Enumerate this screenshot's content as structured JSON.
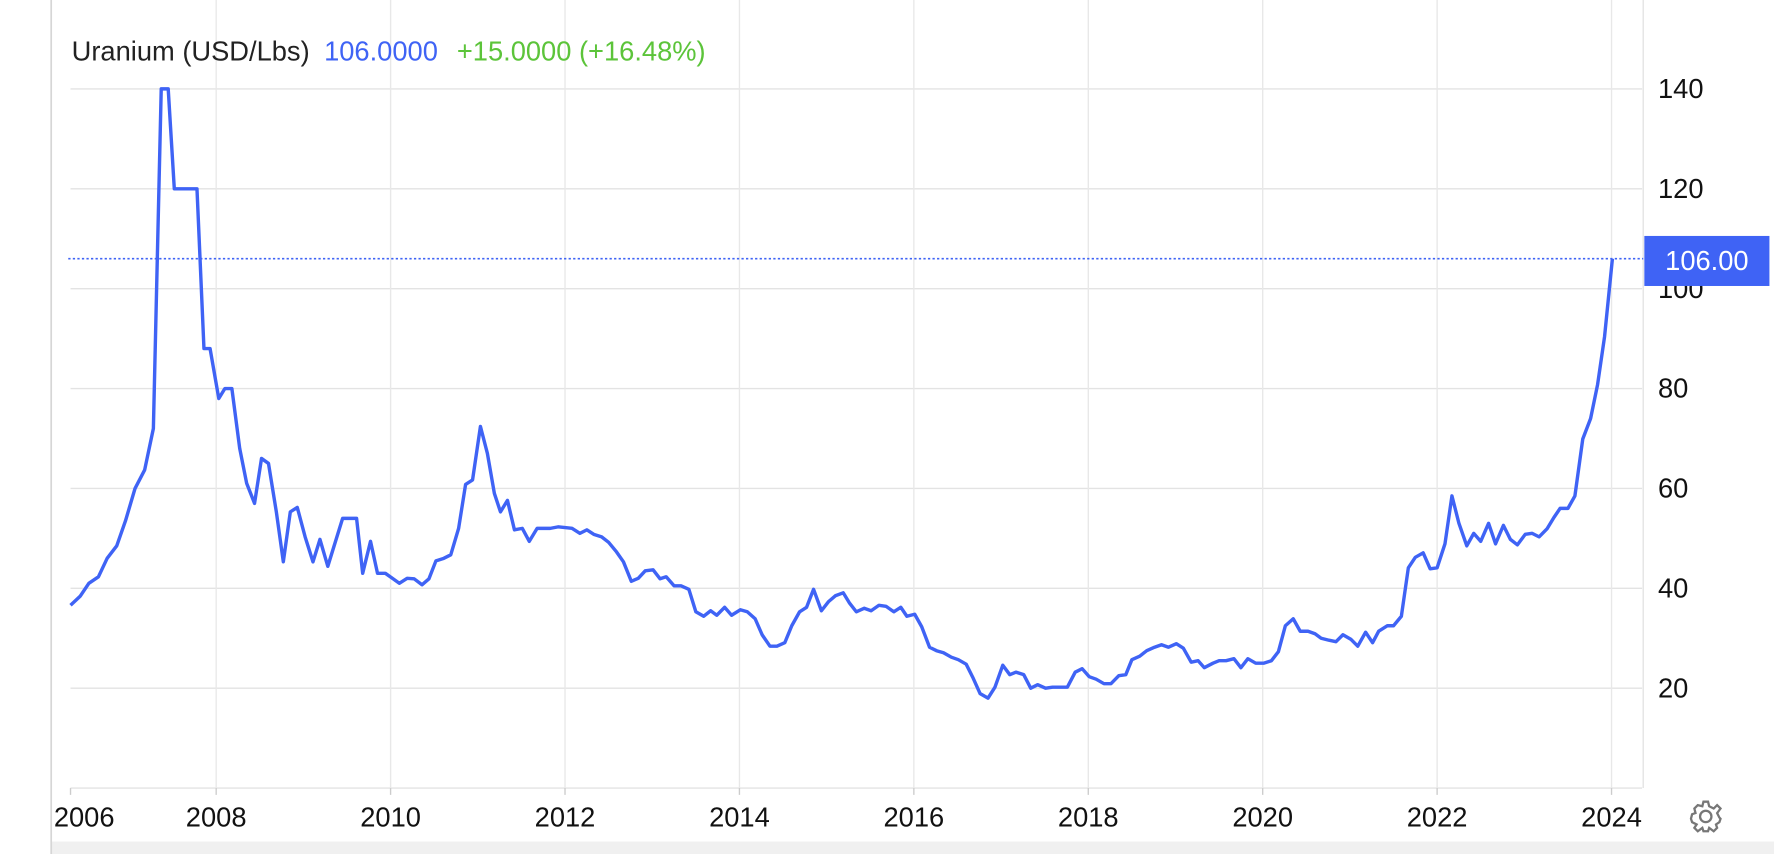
{
  "chart_data": {
    "type": "line",
    "title": "Uranium (USD/Lbs)",
    "price_label": "106.0000",
    "change_label": "+15.0000 (+16.48%)",
    "last_value": {
      "value": 106,
      "label": "106.00"
    },
    "x": [
      2006.33,
      2006.44,
      2006.54,
      2006.65,
      2006.75,
      2006.86,
      2006.96,
      2007.07,
      2007.18,
      2007.28,
      2007.37,
      2007.45,
      2007.52,
      2007.78,
      2007.86,
      2007.93,
      2008.03,
      2008.1,
      2008.18,
      2008.27,
      2008.35,
      2008.44,
      2008.52,
      2008.6,
      2008.69,
      2008.77,
      2008.85,
      2008.93,
      2009.02,
      2009.11,
      2009.19,
      2009.28,
      2009.45,
      2009.61,
      2009.68,
      2009.77,
      2009.85,
      2009.94,
      2010.02,
      2010.1,
      2010.19,
      2010.27,
      2010.36,
      2010.44,
      2010.52,
      2010.61,
      2010.69,
      2010.78,
      2010.86,
      2010.94,
      2011.03,
      2011.11,
      2011.19,
      2011.26,
      2011.34,
      2011.42,
      2011.51,
      2011.59,
      2011.68,
      2011.75,
      2011.83,
      2011.92,
      2012.08,
      2012.17,
      2012.25,
      2012.33,
      2012.42,
      2012.5,
      2012.59,
      2012.67,
      2012.76,
      2012.84,
      2012.92,
      2013.01,
      2013.09,
      2013.16,
      2013.25,
      2013.33,
      2013.42,
      2013.5,
      2013.59,
      2013.67,
      2013.74,
      2013.83,
      2013.91,
      2014.01,
      2014.09,
      2014.18,
      2014.26,
      2014.35,
      2014.43,
      2014.52,
      2014.6,
      2014.69,
      2014.77,
      2014.85,
      2014.94,
      2015.02,
      2015.1,
      2015.19,
      2015.26,
      2015.34,
      2015.43,
      2015.51,
      2015.6,
      2015.68,
      2015.77,
      2015.85,
      2015.92,
      2016.01,
      2016.09,
      2016.18,
      2016.26,
      2016.34,
      2016.43,
      2016.51,
      2016.6,
      2016.68,
      2016.76,
      2016.85,
      2016.93,
      2017.02,
      2017.1,
      2017.17,
      2017.26,
      2017.34,
      2017.42,
      2017.51,
      2017.59,
      2017.68,
      2017.76,
      2017.85,
      2017.93,
      2018.01,
      2018.09,
      2018.18,
      2018.26,
      2018.35,
      2018.43,
      2018.5,
      2018.59,
      2018.67,
      2018.76,
      2018.84,
      2018.92,
      2019.01,
      2019.09,
      2019.18,
      2019.26,
      2019.33,
      2019.43,
      2019.5,
      2019.58,
      2019.67,
      2019.75,
      2019.83,
      2019.92,
      2020.01,
      2020.1,
      2020.18,
      2020.26,
      2020.35,
      2020.43,
      2020.52,
      2020.6,
      2020.67,
      2020.76,
      2020.84,
      2020.92,
      2021.01,
      2021.09,
      2021.18,
      2021.26,
      2021.33,
      2021.43,
      2021.5,
      2021.59,
      2021.67,
      2021.75,
      2021.84,
      2021.92,
      2022.0,
      2022.09,
      2022.17,
      2022.25,
      2022.34,
      2022.42,
      2022.5,
      2022.59,
      2022.67,
      2022.76,
      2022.84,
      2022.92,
      2023.01,
      2023.09,
      2023.17,
      2023.26,
      2023.34,
      2023.41,
      2023.5,
      2023.58,
      2023.67,
      2023.76,
      2023.84,
      2023.92,
      2024.01
    ],
    "series": [
      {
        "name": "Uranium (USD/Lbs)",
        "color": "#3f63f5",
        "values": [
          36.6,
          38.4,
          41,
          42.3,
          46,
          48.5,
          53.5,
          60,
          63.7,
          72,
          140,
          140,
          120,
          120,
          88,
          88,
          78,
          80,
          80,
          68,
          61,
          57,
          66,
          65,
          55.3,
          45.3,
          55.3,
          56.2,
          50.3,
          45.3,
          49.8,
          44.4,
          54,
          54,
          43,
          49.4,
          43,
          43,
          42,
          41,
          42,
          41.9,
          40.7,
          41.9,
          45.5,
          46,
          46.7,
          52,
          60.8,
          61.7,
          72.4,
          67,
          59,
          55.3,
          57.6,
          51.7,
          52,
          49.4,
          52,
          52,
          52,
          52.3,
          52,
          51,
          51.7,
          50.8,
          50.3,
          49.2,
          47.3,
          45.3,
          41.4,
          42,
          43.5,
          43.7,
          41.9,
          42.3,
          40.5,
          40.5,
          39.8,
          35.3,
          34.4,
          35.5,
          34.6,
          36.2,
          34.6,
          35.7,
          35.3,
          33.9,
          30.7,
          28.4,
          28.4,
          29.1,
          32.5,
          35.3,
          36.2,
          39.8,
          35.5,
          37.3,
          38.5,
          39.1,
          37.1,
          35.3,
          36,
          35.5,
          36.6,
          36.4,
          35.3,
          36.2,
          34.4,
          34.8,
          32.3,
          28.2,
          27.5,
          27.1,
          26.2,
          25.7,
          24.8,
          22,
          18.9,
          18,
          20.2,
          24.6,
          22.7,
          23.2,
          22.7,
          20,
          20.7,
          20,
          20.2,
          20.2,
          20.2,
          23.2,
          23.9,
          22.3,
          21.8,
          20.9,
          20.9,
          22.5,
          22.7,
          25.7,
          26.4,
          27.5,
          28.2,
          28.7,
          28.2,
          28.9,
          28,
          25.2,
          25.5,
          24.1,
          25,
          25.5,
          25.5,
          25.9,
          24.1,
          25.9,
          25,
          25,
          25.5,
          27.3,
          32.5,
          33.9,
          31.4,
          31.4,
          30.9,
          30,
          29.6,
          29.3,
          30.7,
          29.8,
          28.4,
          31.2,
          29.1,
          31.4,
          32.5,
          32.5,
          34.4,
          44.1,
          46.2,
          47.1,
          43.9,
          44.1,
          48.9,
          58.5,
          53,
          48.5,
          51,
          49.4,
          53,
          48.9,
          52.6,
          49.8,
          48.7,
          50.8,
          51,
          50.3,
          51.9,
          54.2,
          56,
          56,
          58.5,
          69.9,
          74,
          80.8,
          90.4,
          106
        ]
      }
    ],
    "xlim": [
      2006.33,
      2024.35
    ],
    "xticks": [
      2006,
      2008,
      2010,
      2012,
      2014,
      2016,
      2018,
      2020,
      2022,
      2024
    ],
    "ylim": [
      0,
      143
    ],
    "yticks": [
      20,
      40,
      60,
      80,
      100,
      120,
      140
    ],
    "grid": true
  }
}
